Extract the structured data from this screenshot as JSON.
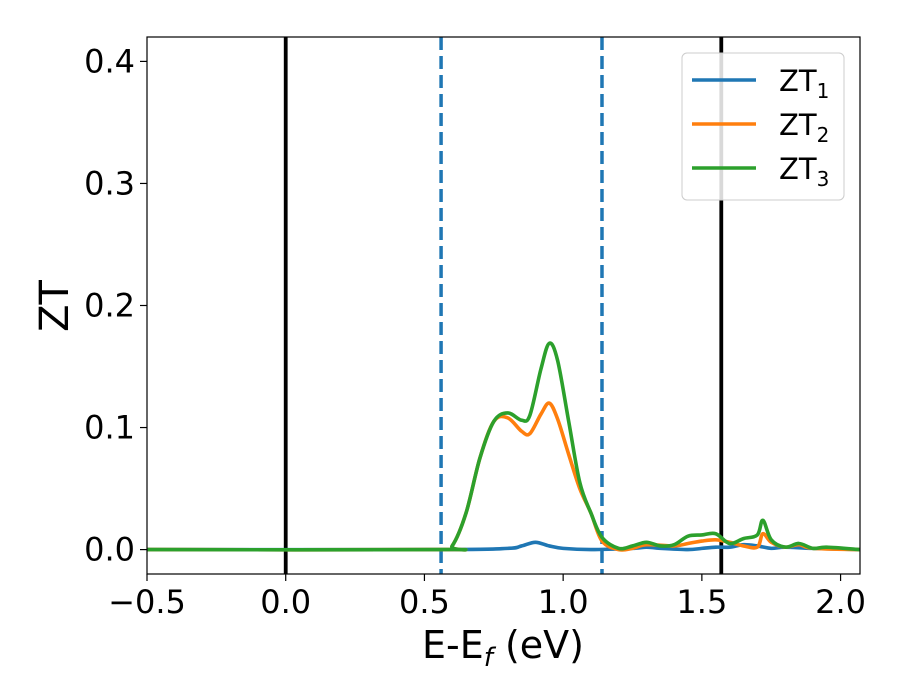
{
  "chart_data": {
    "type": "line",
    "xlabel": "E-E",
    "xlabel_sub": "f",
    "xlabel_unit": " (eV)",
    "ylabel": "ZT",
    "xlim": [
      -0.5,
      2.07
    ],
    "ylim": [
      -0.02,
      0.42
    ],
    "xticks": [
      -0.5,
      0.0,
      0.5,
      1.0,
      1.5,
      2.0
    ],
    "xtick_labels": [
      "−0.5",
      "0.0",
      "0.5",
      "1.0",
      "1.5",
      "2.0"
    ],
    "yticks": [
      0.0,
      0.1,
      0.2,
      0.3,
      0.4
    ],
    "ytick_labels": [
      "0.0",
      "0.1",
      "0.2",
      "0.3",
      "0.4"
    ],
    "grid": false,
    "legend_position": "top-right",
    "vlines": [
      {
        "x": 0.0,
        "style": "solid",
        "color": "#000000"
      },
      {
        "x": 1.57,
        "style": "solid",
        "color": "#000000"
      },
      {
        "x": 0.56,
        "style": "dashed",
        "color": "#1f77b4"
      },
      {
        "x": 1.14,
        "style": "dashed",
        "color": "#1f77b4"
      }
    ],
    "series": [
      {
        "name": "ZT",
        "name_sub": "1",
        "color": "#1f77b4",
        "x": [
          -0.5,
          0.56,
          0.8,
          0.85,
          0.9,
          0.95,
          1.0,
          1.1,
          1.25,
          1.3,
          1.35,
          1.45,
          1.5,
          1.55,
          1.6,
          1.65,
          1.7,
          1.75,
          1.8,
          1.9,
          2.07
        ],
        "y": [
          0.0,
          0.0,
          0.001,
          0.003,
          0.006,
          0.003,
          0.001,
          0.0,
          0.001,
          0.002,
          0.001,
          0.0,
          0.001,
          0.002,
          0.002,
          0.004,
          0.003,
          0.001,
          0.002,
          0.001,
          0.0
        ]
      },
      {
        "name": "ZT",
        "name_sub": "2",
        "color": "#ff7f0e",
        "x": [
          -0.5,
          0.56,
          0.6,
          0.65,
          0.7,
          0.75,
          0.8,
          0.85,
          0.88,
          0.92,
          0.95,
          0.98,
          1.02,
          1.06,
          1.1,
          1.14,
          1.2,
          1.25,
          1.3,
          1.4,
          1.45,
          1.5,
          1.55,
          1.6,
          1.65,
          1.7,
          1.72,
          1.75,
          1.8,
          1.85,
          1.9,
          2.07
        ],
        "y": [
          0.0,
          0.0,
          0.003,
          0.03,
          0.075,
          0.105,
          0.108,
          0.097,
          0.095,
          0.111,
          0.12,
          0.107,
          0.078,
          0.05,
          0.03,
          0.007,
          0.0,
          0.001,
          0.004,
          0.003,
          0.005,
          0.007,
          0.008,
          0.006,
          0.003,
          0.002,
          0.013,
          0.006,
          0.002,
          0.004,
          0.001,
          0.0
        ]
      },
      {
        "name": "ZT",
        "name_sub": "3",
        "color": "#2ca02c",
        "x": [
          -0.5,
          0.56,
          0.6,
          0.65,
          0.7,
          0.75,
          0.8,
          0.85,
          0.88,
          0.92,
          0.95,
          0.98,
          1.02,
          1.06,
          1.1,
          1.14,
          1.2,
          1.25,
          1.3,
          1.35,
          1.4,
          1.45,
          1.5,
          1.55,
          1.6,
          1.65,
          1.7,
          1.72,
          1.75,
          1.8,
          1.85,
          1.9,
          1.95,
          2.07
        ],
        "y": [
          0.0,
          0.0,
          0.003,
          0.03,
          0.075,
          0.105,
          0.112,
          0.106,
          0.11,
          0.148,
          0.169,
          0.155,
          0.105,
          0.055,
          0.03,
          0.01,
          0.001,
          0.003,
          0.006,
          0.003,
          0.004,
          0.011,
          0.012,
          0.013,
          0.005,
          0.009,
          0.012,
          0.024,
          0.008,
          0.002,
          0.005,
          0.001,
          0.002,
          0.0
        ]
      }
    ]
  }
}
